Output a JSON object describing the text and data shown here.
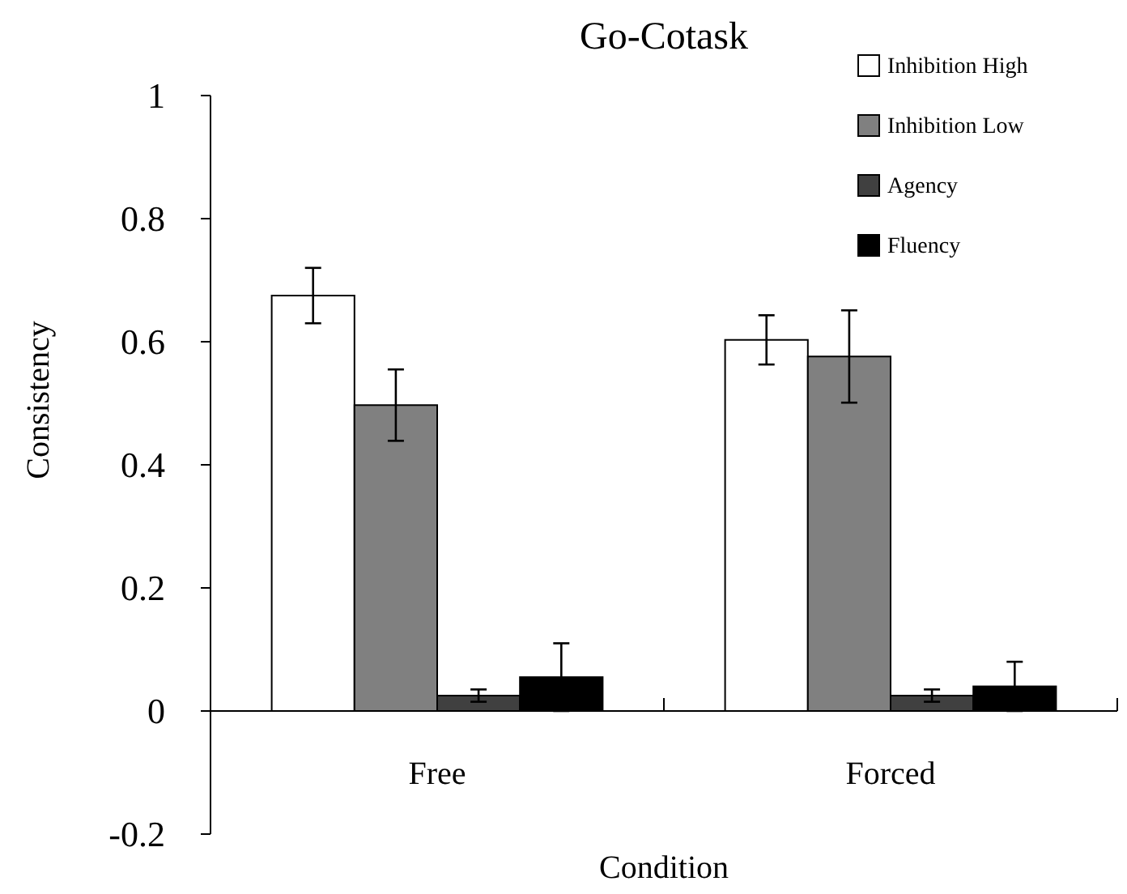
{
  "chart_data": {
    "type": "bar",
    "title": "Go-Cotask",
    "xlabel": "Condition",
    "ylabel": "Consistency",
    "categories": [
      "Free",
      "Forced"
    ],
    "series": [
      {
        "name": "Inhibition High",
        "color": "#ffffff",
        "values": [
          0.675,
          0.603
        ],
        "errors": [
          0.045,
          0.04
        ]
      },
      {
        "name": "Inhibition Low",
        "color": "#808080",
        "values": [
          0.497,
          0.576
        ],
        "errors": [
          0.058,
          0.075
        ]
      },
      {
        "name": "Agency",
        "color": "#404040",
        "values": [
          0.025,
          0.025
        ],
        "errors": [
          0.01,
          0.01
        ]
      },
      {
        "name": "Fluency",
        "color": "#000000",
        "values": [
          0.055,
          0.04
        ],
        "errors": [
          0.055,
          0.04
        ]
      }
    ],
    "ylim": [
      -0.2,
      1
    ],
    "yticks": [
      -0.2,
      0,
      0.2,
      0.4,
      0.6,
      0.8,
      1
    ],
    "legend": "top right"
  }
}
